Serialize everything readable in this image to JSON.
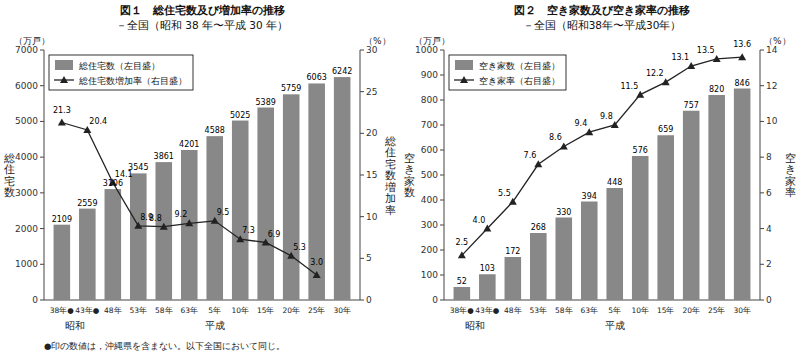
{
  "chart_data": [
    {
      "type": "bar",
      "title": "図１　総住宅数及び増加率の推移",
      "subtitle": "－全国（昭和 38 年〜平成 30 年）",
      "categories": [
        "38年●",
        "43年●",
        "48年",
        "53年",
        "58年",
        "63年",
        "5年",
        "10年",
        "15年",
        "20年",
        "25年",
        "30年"
      ],
      "series": [
        {
          "name": "総住宅数（左目盛）",
          "type": "bar",
          "color": "#888888",
          "values": [
            2109,
            2559,
            3106,
            3545,
            3861,
            4201,
            4588,
            5025,
            5389,
            5759,
            6063,
            6242
          ]
        },
        {
          "name": "総住宅数増加率（右目盛）",
          "type": "line",
          "axis": "y2",
          "color": "#222222",
          "marker": "triangle",
          "values": [
            21.3,
            20.4,
            14.1,
            8.9,
            8.8,
            9.2,
            9.5,
            7.3,
            6.9,
            5.3,
            3.0,
            null
          ],
          "value_labels": [
            "21.3",
            "20.4",
            "14.1",
            "8.9",
            "8.8",
            "9.2",
            "9.5",
            "7.3",
            "6.9",
            "5.3",
            "3.0",
            null
          ]
        }
      ],
      "y_label": "総\n住\n宅\n数",
      "y2_label": "総\n住\n宅\n数\n増\n加\n率",
      "y_unit": "（万戸）",
      "y2_unit": "（%）",
      "ylim": [
        0,
        7000
      ],
      "yticks": [
        0,
        1000,
        2000,
        3000,
        4000,
        5000,
        6000,
        7000
      ],
      "y2lim": [
        0,
        30
      ],
      "y2ticks": [
        0,
        5,
        10,
        15,
        20,
        25,
        30
      ],
      "annotations": [
        {
          "text": "昭和",
          "x": 0.5
        },
        {
          "text": "平成",
          "x": 6.0
        }
      ],
      "footnote": "●印の数値は，沖縄県を含まない。以下全国において同じ。",
      "legend": "upper left",
      "data_labels": true,
      "grid": false
    },
    {
      "type": "bar",
      "title": "図２　空き家数及び空き家率の推移",
      "subtitle": "－全国（昭和38年〜平成30年）",
      "categories": [
        "38年●",
        "43年●",
        "48年",
        "53年",
        "58年",
        "63年",
        "5年",
        "10年",
        "15年",
        "20年",
        "25年",
        "30年"
      ],
      "series": [
        {
          "name": "空き家数（左目盛）",
          "type": "bar",
          "color": "#888888",
          "values": [
            52,
            103,
            172,
            268,
            330,
            394,
            448,
            576,
            659,
            757,
            820,
            846
          ]
        },
        {
          "name": "空き家率（右目盛）",
          "type": "line",
          "axis": "y2",
          "color": "#222222",
          "marker": "triangle",
          "values": [
            2.5,
            4.0,
            5.5,
            7.6,
            8.6,
            9.4,
            9.8,
            11.5,
            12.2,
            13.1,
            13.5,
            13.6
          ],
          "value_labels": [
            "2.5",
            "4.0",
            "5.5",
            "7.6",
            "8.6",
            "9.4",
            "9.8",
            "11.5",
            "12.2",
            "13.1",
            "13.5",
            "13.6"
          ]
        }
      ],
      "y_label": "空\nき\n家\n数",
      "y2_label": "空\nき\n家\n率",
      "y_unit": "（万戸）",
      "y2_unit": "（%）",
      "ylim": [
        0,
        1000
      ],
      "yticks": [
        0,
        100,
        200,
        300,
        400,
        500,
        600,
        700,
        800,
        900,
        1000
      ],
      "y2lim": [
        0,
        14
      ],
      "y2ticks": [
        0,
        2,
        4,
        6,
        8,
        10,
        12,
        14
      ],
      "annotations": [
        {
          "text": "昭和",
          "x": 0.5
        },
        {
          "text": "平成",
          "x": 6.0
        }
      ],
      "legend": "upper left",
      "data_labels": true,
      "grid": false
    }
  ]
}
